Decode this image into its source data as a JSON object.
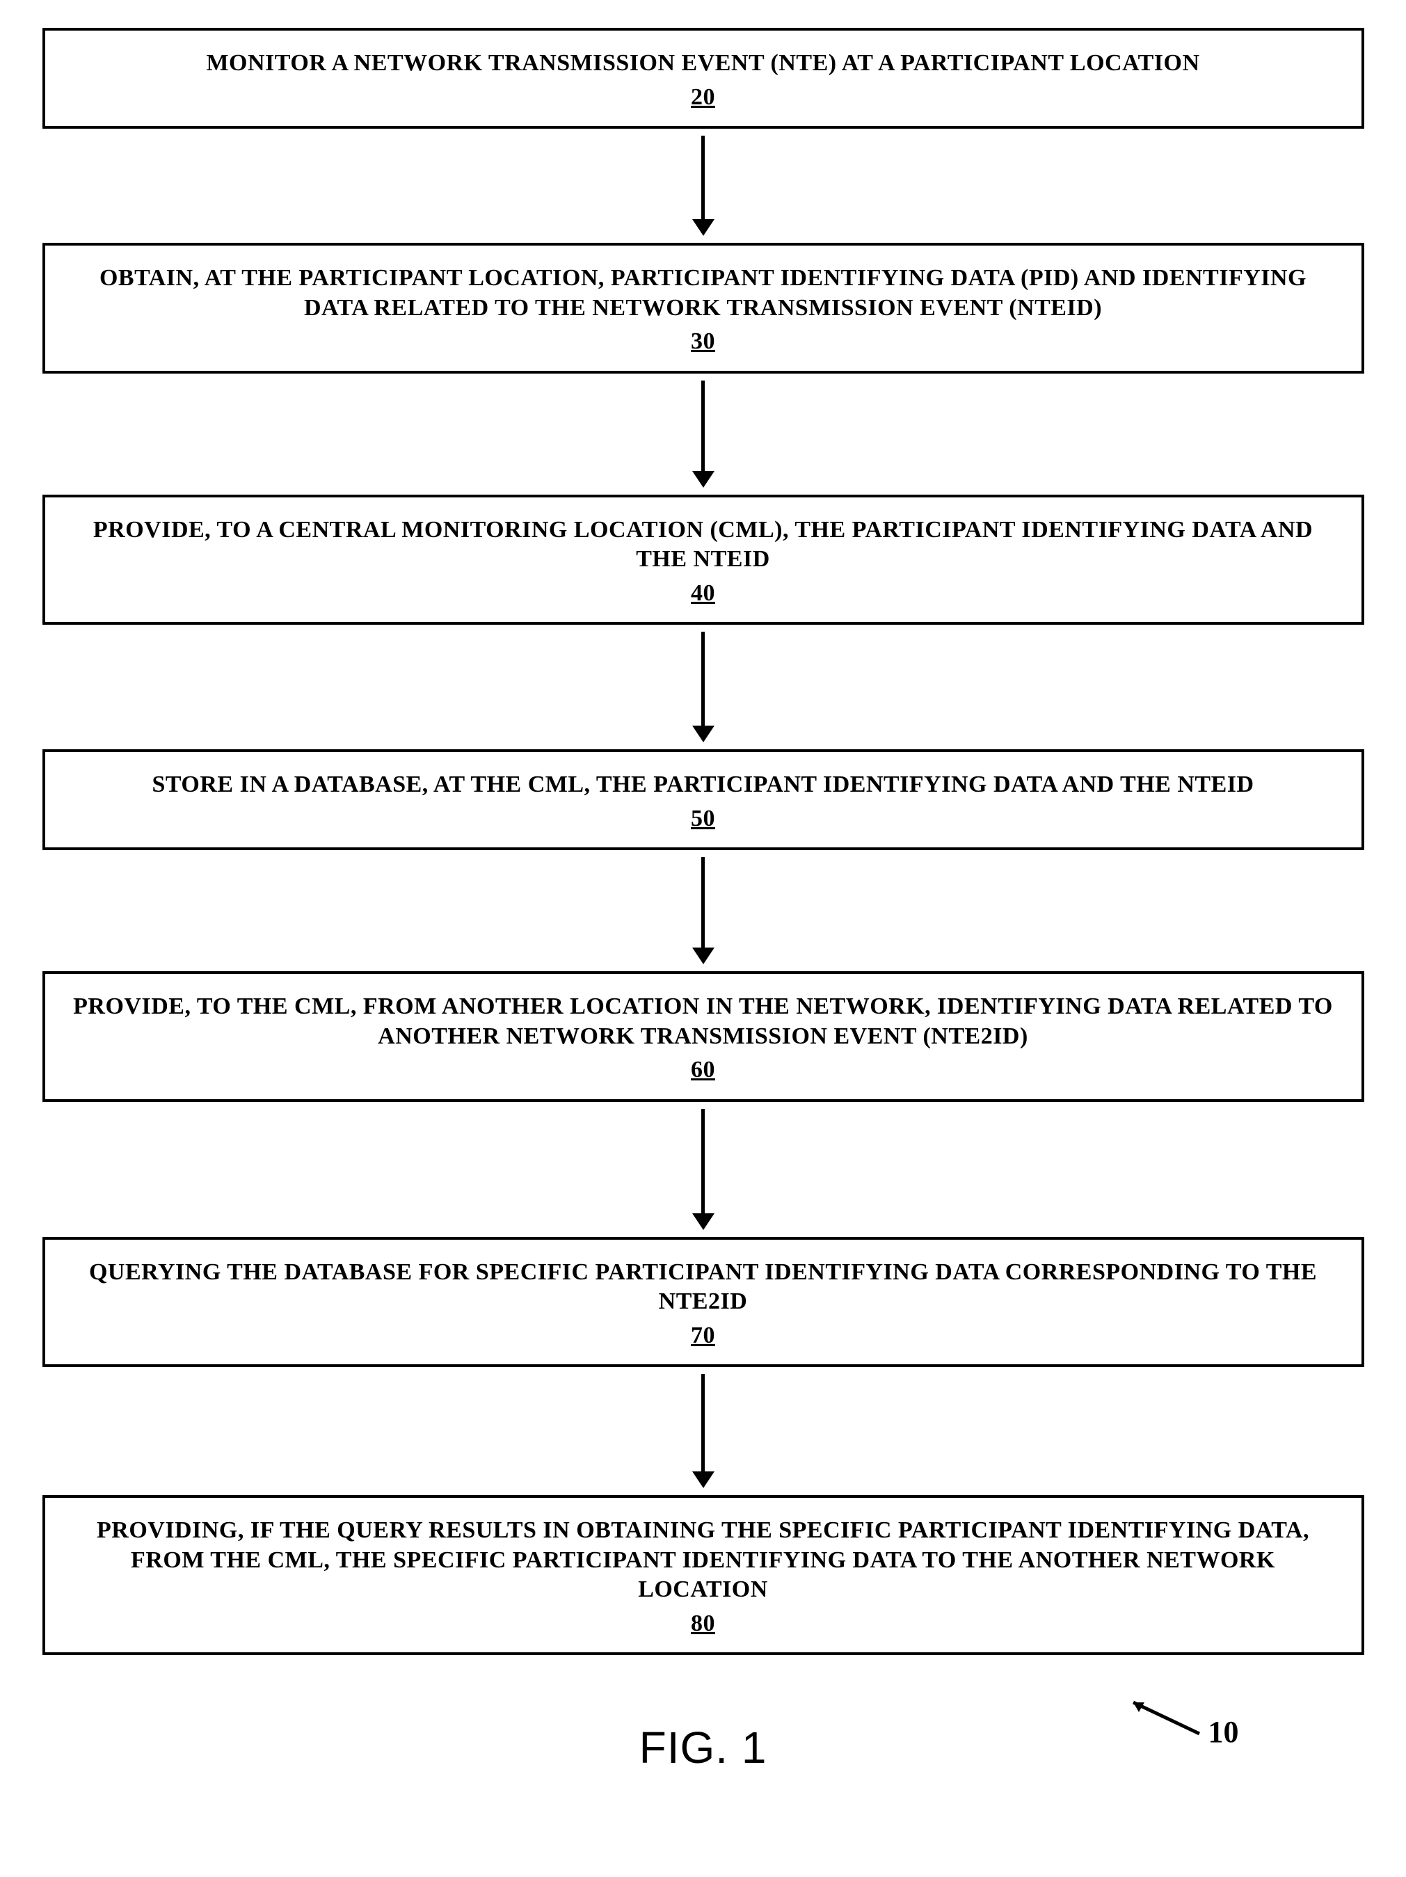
{
  "flow": {
    "background_color": "#ffffff",
    "box_border_color": "#000000",
    "box_border_width": 4,
    "arrow_color": "#000000",
    "font_family": "Times New Roman",
    "box_font_size": 34,
    "box_font_weight": 700,
    "arrow_shaft_heights": [
      120,
      130,
      135,
      130,
      150,
      140
    ],
    "steps": [
      {
        "text": "MONITOR A NETWORK TRANSMISSION EVENT (NTE) AT A PARTICIPANT LOCATION",
        "num": "20"
      },
      {
        "text": "OBTAIN, AT THE PARTICIPANT LOCATION, PARTICIPANT IDENTIFYING DATA (PID) AND IDENTIFYING DATA RELATED TO THE NETWORK TRANSMISSION EVENT (NTEID)",
        "num": "30"
      },
      {
        "text": "PROVIDE, TO A CENTRAL MONITORING LOCATION (CML), THE PARTICIPANT IDENTIFYING DATA AND THE NTEID",
        "num": "40"
      },
      {
        "text": "STORE IN A DATABASE, AT THE CML, THE PARTICIPANT IDENTIFYING DATA AND THE NTEID",
        "num": "50"
      },
      {
        "text": "PROVIDE, TO THE CML, FROM ANOTHER LOCATION IN THE NETWORK, IDENTIFYING DATA RELATED TO ANOTHER NETWORK TRANSMISSION EVENT (NTE2ID)",
        "num": "60"
      },
      {
        "text": "QUERYING THE DATABASE FOR SPECIFIC PARTICIPANT IDENTIFYING DATA CORRESPONDING TO THE NTE2ID",
        "num": "70"
      },
      {
        "text": "PROVIDING, IF THE QUERY RESULTS IN OBTAINING THE SPECIFIC PARTICIPANT IDENTIFYING DATA, FROM THE CML, THE SPECIFIC PARTICIPANT IDENTIFYING DATA TO THE ANOTHER NETWORK LOCATION",
        "num": "80"
      }
    ]
  },
  "figure": {
    "label": "FIG. 1",
    "label_font_size": 64,
    "label_font_family": "Arial",
    "ref_num": "10",
    "ref_font_size": 44
  }
}
